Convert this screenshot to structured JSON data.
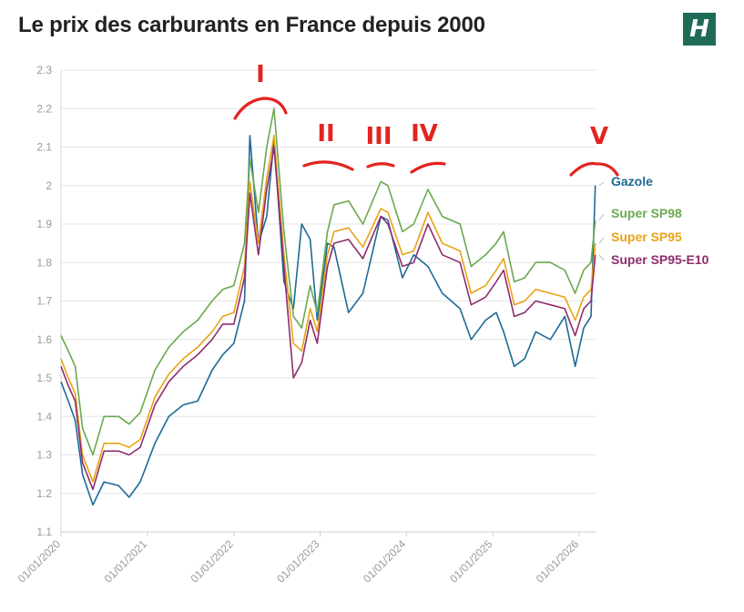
{
  "title": "Le prix des carburants en France depuis 2000",
  "logo_text": "H",
  "logo_color": "#1f6b57",
  "chart_data": {
    "type": "line",
    "title": "Le prix des carburants en France depuis 2000",
    "xlabel": "",
    "ylabel": "",
    "x_ticks": [
      "01/01/2020",
      "01/01/2021",
      "01/01/2022",
      "01/01/2023",
      "01/01/2024",
      "01/01/2025",
      "01/01/2026"
    ],
    "y_ticks": [
      "1.1",
      "1.2",
      "1.3",
      "1.4",
      "1.5",
      "1.6",
      "1.7",
      "1.8",
      "1.9",
      "2",
      "2.1",
      "2.2",
      "2.3"
    ],
    "ylim": [
      1.1,
      2.3
    ],
    "xlim": [
      "2020-01-01",
      "2026-03-15"
    ],
    "grid": "horizontal",
    "legend_placement": "right",
    "series": [
      {
        "name": "Gazole",
        "color": "#1d6a96",
        "points": [
          [
            "2020-01-01",
            1.49
          ],
          [
            "2020-02-01",
            1.44
          ],
          [
            "2020-03-01",
            1.39
          ],
          [
            "2020-04-01",
            1.25
          ],
          [
            "2020-05-15",
            1.17
          ],
          [
            "2020-07-01",
            1.23
          ],
          [
            "2020-09-01",
            1.22
          ],
          [
            "2020-10-15",
            1.19
          ],
          [
            "2020-12-01",
            1.23
          ],
          [
            "2021-02-01",
            1.33
          ],
          [
            "2021-04-01",
            1.4
          ],
          [
            "2021-06-01",
            1.43
          ],
          [
            "2021-08-01",
            1.44
          ],
          [
            "2021-10-01",
            1.52
          ],
          [
            "2021-11-15",
            1.56
          ],
          [
            "2022-01-01",
            1.59
          ],
          [
            "2022-02-15",
            1.7
          ],
          [
            "2022-03-10",
            2.13
          ],
          [
            "2022-04-15",
            1.85
          ],
          [
            "2022-05-20",
            1.92
          ],
          [
            "2022-06-20",
            2.12
          ],
          [
            "2022-08-01",
            1.75
          ],
          [
            "2022-09-10",
            1.68
          ],
          [
            "2022-10-15",
            1.9
          ],
          [
            "2022-11-20",
            1.86
          ],
          [
            "2022-12-20",
            1.65
          ],
          [
            "2023-02-01",
            1.85
          ],
          [
            "2023-03-01",
            1.84
          ],
          [
            "2023-05-01",
            1.67
          ],
          [
            "2023-07-01",
            1.72
          ],
          [
            "2023-09-15",
            1.92
          ],
          [
            "2023-10-15",
            1.91
          ],
          [
            "2023-12-15",
            1.76
          ],
          [
            "2024-02-01",
            1.82
          ],
          [
            "2024-04-01",
            1.79
          ],
          [
            "2024-06-01",
            1.72
          ],
          [
            "2024-08-15",
            1.68
          ],
          [
            "2024-10-01",
            1.6
          ],
          [
            "2024-12-01",
            1.65
          ],
          [
            "2025-01-15",
            1.67
          ],
          [
            "2025-02-15",
            1.62
          ],
          [
            "2025-04-01",
            1.53
          ],
          [
            "2025-05-15",
            1.55
          ],
          [
            "2025-07-01",
            1.62
          ],
          [
            "2025-09-01",
            1.6
          ],
          [
            "2025-11-01",
            1.66
          ],
          [
            "2025-12-15",
            1.53
          ],
          [
            "2026-01-20",
            1.63
          ],
          [
            "2026-02-20",
            1.66
          ],
          [
            "2026-03-10",
            2.0
          ]
        ]
      },
      {
        "name": "Super SP98",
        "color": "#6aa84f",
        "points": [
          [
            "2020-01-01",
            1.61
          ],
          [
            "2020-02-01",
            1.57
          ],
          [
            "2020-03-01",
            1.53
          ],
          [
            "2020-04-01",
            1.37
          ],
          [
            "2020-05-15",
            1.3
          ],
          [
            "2020-07-01",
            1.4
          ],
          [
            "2020-09-01",
            1.4
          ],
          [
            "2020-10-15",
            1.38
          ],
          [
            "2020-12-01",
            1.41
          ],
          [
            "2021-02-01",
            1.52
          ],
          [
            "2021-04-01",
            1.58
          ],
          [
            "2021-06-01",
            1.62
          ],
          [
            "2021-08-01",
            1.65
          ],
          [
            "2021-10-01",
            1.7
          ],
          [
            "2021-11-15",
            1.73
          ],
          [
            "2022-01-01",
            1.74
          ],
          [
            "2022-02-15",
            1.85
          ],
          [
            "2022-03-10",
            2.07
          ],
          [
            "2022-04-15",
            1.93
          ],
          [
            "2022-05-20",
            2.1
          ],
          [
            "2022-06-20",
            2.2
          ],
          [
            "2022-08-01",
            1.88
          ],
          [
            "2022-09-10",
            1.66
          ],
          [
            "2022-10-15",
            1.63
          ],
          [
            "2022-11-20",
            1.74
          ],
          [
            "2022-12-20",
            1.67
          ],
          [
            "2023-02-01",
            1.88
          ],
          [
            "2023-03-01",
            1.95
          ],
          [
            "2023-05-01",
            1.96
          ],
          [
            "2023-07-01",
            1.9
          ],
          [
            "2023-09-15",
            2.01
          ],
          [
            "2023-10-15",
            2.0
          ],
          [
            "2023-12-15",
            1.88
          ],
          [
            "2024-02-01",
            1.9
          ],
          [
            "2024-04-01",
            1.99
          ],
          [
            "2024-06-01",
            1.92
          ],
          [
            "2024-08-15",
            1.9
          ],
          [
            "2024-10-01",
            1.79
          ],
          [
            "2024-12-01",
            1.82
          ],
          [
            "2025-01-15",
            1.85
          ],
          [
            "2025-02-15",
            1.88
          ],
          [
            "2025-04-01",
            1.75
          ],
          [
            "2025-05-15",
            1.76
          ],
          [
            "2025-07-01",
            1.8
          ],
          [
            "2025-09-01",
            1.8
          ],
          [
            "2025-11-01",
            1.78
          ],
          [
            "2025-12-15",
            1.72
          ],
          [
            "2026-01-20",
            1.78
          ],
          [
            "2026-02-20",
            1.8
          ],
          [
            "2026-03-10",
            1.91
          ]
        ]
      },
      {
        "name": "Super SP95",
        "color": "#e8a317",
        "points": [
          [
            "2020-01-01",
            1.55
          ],
          [
            "2020-02-01",
            1.5
          ],
          [
            "2020-03-01",
            1.46
          ],
          [
            "2020-04-01",
            1.3
          ],
          [
            "2020-05-15",
            1.23
          ],
          [
            "2020-07-01",
            1.33
          ],
          [
            "2020-09-01",
            1.33
          ],
          [
            "2020-10-15",
            1.32
          ],
          [
            "2020-12-01",
            1.34
          ],
          [
            "2021-02-01",
            1.45
          ],
          [
            "2021-04-01",
            1.51
          ],
          [
            "2021-06-01",
            1.55
          ],
          [
            "2021-08-01",
            1.58
          ],
          [
            "2021-10-01",
            1.62
          ],
          [
            "2021-11-15",
            1.66
          ],
          [
            "2022-01-01",
            1.67
          ],
          [
            "2022-02-15",
            1.79
          ],
          [
            "2022-03-10",
            2.01
          ],
          [
            "2022-04-15",
            1.85
          ],
          [
            "2022-05-20",
            2.02
          ],
          [
            "2022-06-20",
            2.13
          ],
          [
            "2022-08-01",
            1.82
          ],
          [
            "2022-09-10",
            1.59
          ],
          [
            "2022-10-15",
            1.57
          ],
          [
            "2022-11-20",
            1.68
          ],
          [
            "2022-12-20",
            1.62
          ],
          [
            "2023-02-01",
            1.82
          ],
          [
            "2023-03-01",
            1.88
          ],
          [
            "2023-05-01",
            1.89
          ],
          [
            "2023-07-01",
            1.84
          ],
          [
            "2023-09-15",
            1.94
          ],
          [
            "2023-10-15",
            1.93
          ],
          [
            "2023-12-15",
            1.82
          ],
          [
            "2024-02-01",
            1.83
          ],
          [
            "2024-04-01",
            1.93
          ],
          [
            "2024-06-01",
            1.85
          ],
          [
            "2024-08-15",
            1.83
          ],
          [
            "2024-10-01",
            1.72
          ],
          [
            "2024-12-01",
            1.74
          ],
          [
            "2025-01-15",
            1.78
          ],
          [
            "2025-02-15",
            1.81
          ],
          [
            "2025-04-01",
            1.69
          ],
          [
            "2025-05-15",
            1.7
          ],
          [
            "2025-07-01",
            1.73
          ],
          [
            "2025-09-01",
            1.72
          ],
          [
            "2025-11-01",
            1.71
          ],
          [
            "2025-12-15",
            1.65
          ],
          [
            "2026-01-20",
            1.71
          ],
          [
            "2026-02-20",
            1.73
          ],
          [
            "2026-03-10",
            1.85
          ]
        ]
      },
      {
        "name": "Super SP95-E10",
        "color": "#8e2c6e",
        "points": [
          [
            "2020-01-01",
            1.53
          ],
          [
            "2020-02-01",
            1.48
          ],
          [
            "2020-03-01",
            1.44
          ],
          [
            "2020-04-01",
            1.28
          ],
          [
            "2020-05-15",
            1.21
          ],
          [
            "2020-07-01",
            1.31
          ],
          [
            "2020-09-01",
            1.31
          ],
          [
            "2020-10-15",
            1.3
          ],
          [
            "2020-12-01",
            1.32
          ],
          [
            "2021-02-01",
            1.43
          ],
          [
            "2021-04-01",
            1.49
          ],
          [
            "2021-06-01",
            1.53
          ],
          [
            "2021-08-01",
            1.56
          ],
          [
            "2021-10-01",
            1.6
          ],
          [
            "2021-11-15",
            1.64
          ],
          [
            "2022-01-01",
            1.64
          ],
          [
            "2022-02-15",
            1.76
          ],
          [
            "2022-03-10",
            1.98
          ],
          [
            "2022-04-15",
            1.82
          ],
          [
            "2022-05-20",
            1.99
          ],
          [
            "2022-06-20",
            2.1
          ],
          [
            "2022-08-01",
            1.79
          ],
          [
            "2022-09-10",
            1.5
          ],
          [
            "2022-10-15",
            1.54
          ],
          [
            "2022-11-20",
            1.65
          ],
          [
            "2022-12-20",
            1.59
          ],
          [
            "2023-02-01",
            1.79
          ],
          [
            "2023-03-01",
            1.85
          ],
          [
            "2023-05-01",
            1.86
          ],
          [
            "2023-07-01",
            1.81
          ],
          [
            "2023-09-15",
            1.92
          ],
          [
            "2023-10-15",
            1.9
          ],
          [
            "2023-12-15",
            1.79
          ],
          [
            "2024-02-01",
            1.8
          ],
          [
            "2024-04-01",
            1.9
          ],
          [
            "2024-06-01",
            1.82
          ],
          [
            "2024-08-15",
            1.8
          ],
          [
            "2024-10-01",
            1.69
          ],
          [
            "2024-12-01",
            1.71
          ],
          [
            "2025-01-15",
            1.75
          ],
          [
            "2025-02-15",
            1.78
          ],
          [
            "2025-04-01",
            1.66
          ],
          [
            "2025-05-15",
            1.67
          ],
          [
            "2025-07-01",
            1.7
          ],
          [
            "2025-09-01",
            1.69
          ],
          [
            "2025-11-01",
            1.68
          ],
          [
            "2025-12-15",
            1.61
          ],
          [
            "2026-01-20",
            1.68
          ],
          [
            "2026-02-20",
            1.7
          ],
          [
            "2026-03-10",
            1.82
          ]
        ]
      }
    ],
    "annotations": [
      "I",
      "II",
      "III",
      "IV",
      "V"
    ],
    "annotation_color": "#e3231f"
  }
}
